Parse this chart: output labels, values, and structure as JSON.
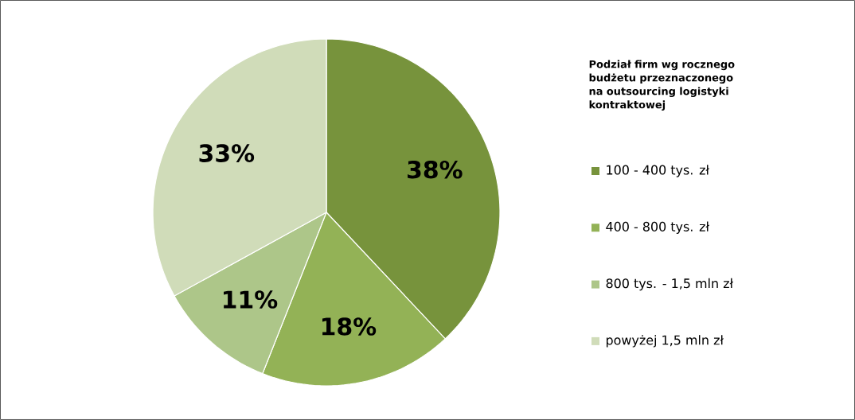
{
  "chart_data": {
    "type": "pie",
    "legend_title": "Podział firm wg rocznego budżetu przeznaczonego na outsourcing logistyki kontraktowej",
    "categories": [
      "100 - 400 tys. zł",
      "400 - 800 tys. zł",
      "800 tys. - 1,5 mln zł",
      "powyżej 1,5 mln zł"
    ],
    "values": [
      38,
      18,
      11,
      33
    ],
    "value_labels": [
      "38%",
      "18%",
      "11%",
      "33%"
    ],
    "colors": [
      "#77933c",
      "#93b256",
      "#adc689",
      "#d0dcb9"
    ],
    "legend": "right"
  }
}
